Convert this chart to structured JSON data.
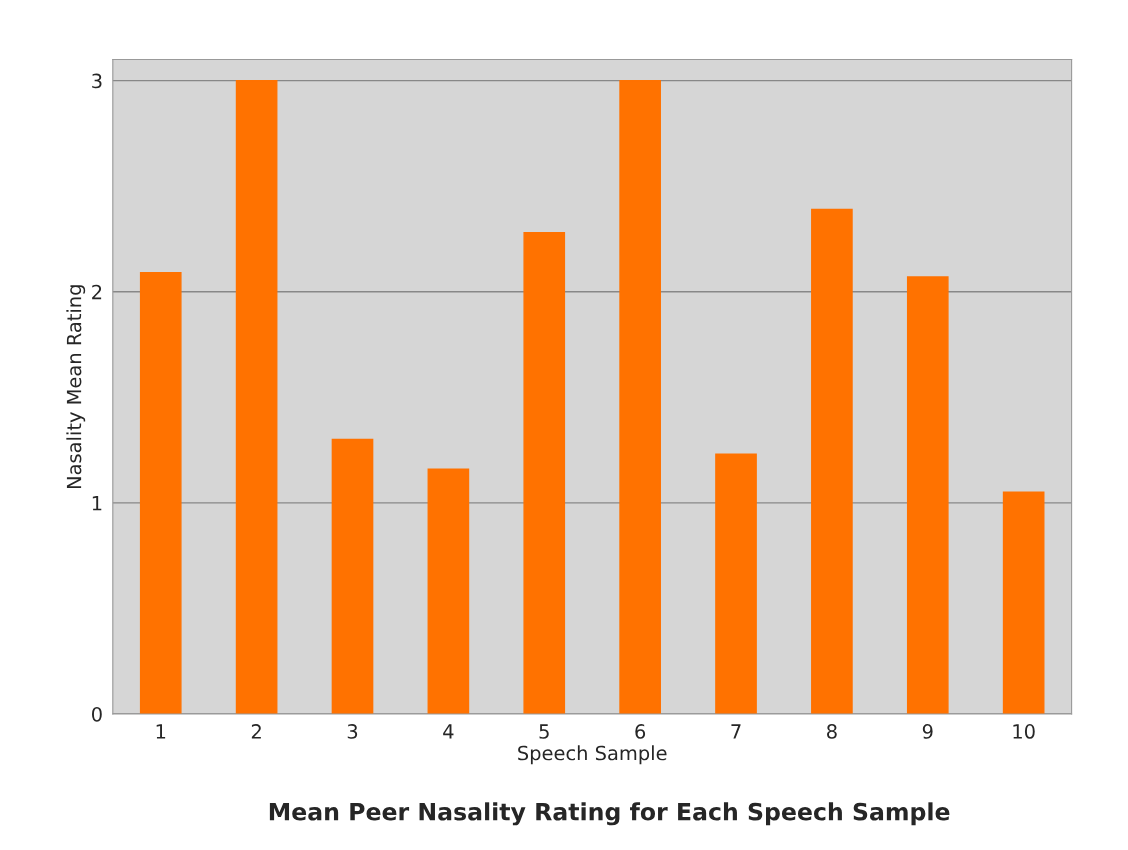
{
  "chart_data": {
    "type": "bar",
    "title": "Mean Peer Nasality Rating for Each Speech Sample",
    "xlabel": "Speech Sample",
    "ylabel": "Nasality Mean Rating",
    "categories": [
      "1",
      "2",
      "3",
      "4",
      "5",
      "6",
      "7",
      "8",
      "9",
      "10"
    ],
    "values": [
      2.09,
      3.0,
      1.3,
      1.16,
      2.28,
      3.0,
      1.23,
      2.39,
      2.07,
      1.05
    ],
    "color": "#ff7200",
    "ylim": [
      0,
      3.1
    ],
    "yticks": [
      0,
      1,
      2,
      3
    ],
    "grid": "y"
  }
}
